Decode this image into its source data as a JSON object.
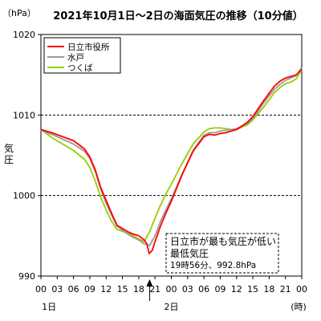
{
  "chart_data": {
    "type": "line",
    "title": "2021年10月1日～2日の海面気圧の推移（10分値）",
    "unit_label": "（hPa）",
    "ylabel": "気圧",
    "xlabel_unit": "(時)",
    "ylim": [
      990,
      1020
    ],
    "yticks": [
      990,
      1000,
      1010,
      1020
    ],
    "y_dashed_gridlines": [
      1000,
      1010
    ],
    "xlim": [
      0,
      48
    ],
    "xticks": [
      {
        "hour": 0,
        "label": "00"
      },
      {
        "hour": 3,
        "label": "03"
      },
      {
        "hour": 6,
        "label": "06"
      },
      {
        "hour": 9,
        "label": "09"
      },
      {
        "hour": 12,
        "label": "12"
      },
      {
        "hour": 15,
        "label": "15"
      },
      {
        "hour": 18,
        "label": "18"
      },
      {
        "hour": 21,
        "label": "21"
      },
      {
        "hour": 24,
        "label": "00"
      },
      {
        "hour": 27,
        "label": "03"
      },
      {
        "hour": 30,
        "label": "06"
      },
      {
        "hour": 33,
        "label": "09"
      },
      {
        "hour": 36,
        "label": "12"
      },
      {
        "hour": 39,
        "label": "15"
      },
      {
        "hour": 42,
        "label": "18"
      },
      {
        "hour": 45,
        "label": "21"
      },
      {
        "hour": 48,
        "label": "00"
      }
    ],
    "day_labels": [
      {
        "hour": 1.5,
        "label": "1日"
      },
      {
        "hour": 24,
        "label": "2日"
      }
    ],
    "legend": {
      "placement": "top-left"
    },
    "series": [
      {
        "name": "日立市役所",
        "color": "#ff0000",
        "x": [
          0,
          2,
          4,
          6,
          8,
          9,
          10,
          11,
          12,
          13,
          14,
          16,
          17,
          18,
          19,
          19.5,
          19.93,
          20.5,
          21,
          22,
          23,
          24,
          26,
          28,
          30,
          31,
          32,
          33,
          34,
          35,
          36,
          38,
          39,
          40,
          41,
          42,
          43,
          44,
          45,
          46,
          47,
          48
        ],
        "y": [
          1008.2,
          1007.8,
          1007.3,
          1006.8,
          1005.8,
          1004.8,
          1003.2,
          1001.0,
          999.4,
          997.8,
          996.3,
          995.5,
          995.2,
          995.0,
          994.5,
          994.0,
          992.8,
          993.2,
          994.3,
          996.2,
          997.8,
          999.3,
          1002.6,
          1005.5,
          1007.3,
          1007.6,
          1007.5,
          1007.7,
          1007.8,
          1008.0,
          1008.2,
          1009.1,
          1009.8,
          1010.8,
          1011.8,
          1012.7,
          1013.6,
          1014.2,
          1014.6,
          1014.8,
          1015.0,
          1015.7
        ]
      },
      {
        "name": "水戸",
        "color": "#9a9a9a",
        "x": [
          0,
          2,
          4,
          6,
          8,
          9,
          10,
          11,
          12,
          13,
          14,
          16,
          17,
          18,
          19,
          20,
          21,
          22,
          23,
          24,
          26,
          28,
          30,
          31,
          32,
          33,
          34,
          35,
          36,
          38,
          39,
          40,
          41,
          42,
          43,
          44,
          45,
          46,
          47,
          48
        ],
        "y": [
          1008.1,
          1007.6,
          1007.0,
          1006.4,
          1005.5,
          1004.6,
          1003.0,
          1000.8,
          999.0,
          997.6,
          996.2,
          995.2,
          994.8,
          994.5,
          994.0,
          993.8,
          995.0,
          996.8,
          998.2,
          999.6,
          1002.7,
          1005.6,
          1007.5,
          1007.8,
          1007.8,
          1008.0,
          1008.1,
          1008.2,
          1008.3,
          1009.0,
          1009.6,
          1010.5,
          1011.5,
          1012.4,
          1013.2,
          1013.8,
          1014.3,
          1014.6,
          1014.9,
          1015.9
        ]
      },
      {
        "name": "つくば",
        "color": "#99cc00",
        "x": [
          0,
          2,
          4,
          6,
          8,
          9,
          10,
          11,
          12,
          13,
          14,
          16,
          17,
          18,
          19,
          20,
          21,
          22,
          23,
          24,
          26,
          28,
          30,
          31,
          32,
          33,
          34,
          35,
          36,
          38,
          39,
          40,
          41,
          42,
          43,
          44,
          45,
          46,
          47,
          48
        ],
        "y": [
          1008.2,
          1007.2,
          1006.4,
          1005.6,
          1004.5,
          1003.5,
          1001.8,
          999.8,
          998.2,
          996.8,
          995.8,
          995.3,
          995.0,
          994.6,
          994.3,
          995.5,
          997.2,
          998.8,
          1000.2,
          1001.4,
          1004.0,
          1006.4,
          1007.9,
          1008.3,
          1008.4,
          1008.4,
          1008.3,
          1008.2,
          1008.2,
          1008.8,
          1009.4,
          1010.2,
          1011.0,
          1011.9,
          1012.8,
          1013.4,
          1013.9,
          1014.1,
          1014.5,
          1015.6
        ]
      }
    ],
    "annotation": {
      "lines": [
        "日立市が最も気圧が低い",
        "最低気圧",
        "19時56分、992.8hPa"
      ],
      "arrow_x": 20
    }
  }
}
